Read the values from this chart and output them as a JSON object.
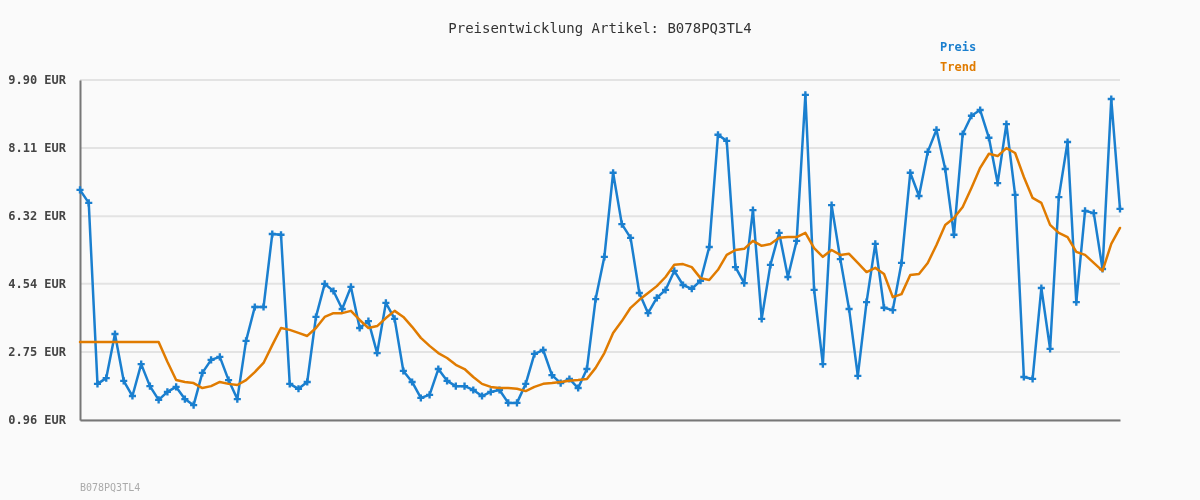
{
  "chart_data": {
    "type": "line",
    "title": "Preisentwicklung Artikel: B078PQ3TL4",
    "categories": [
      null,
      null,
      null,
      null,
      null,
      null,
      null,
      null,
      null,
      null,
      null,
      null,
      null,
      null,
      null,
      null,
      null,
      null,
      null,
      null,
      null,
      null,
      null,
      null,
      null,
      null,
      null,
      null,
      null,
      null,
      null,
      null,
      null,
      null,
      null,
      null,
      null,
      null,
      null,
      null,
      null,
      null,
      null,
      null,
      null,
      null,
      null,
      null,
      null,
      null,
      null,
      null,
      null,
      null,
      null,
      null,
      null,
      null,
      null,
      null,
      null,
      null,
      null,
      null,
      null,
      null,
      null,
      null,
      null,
      null,
      null,
      null,
      null,
      null,
      null,
      null,
      null,
      null,
      null,
      null,
      null,
      null,
      null,
      null,
      null,
      null,
      null,
      null,
      null,
      null,
      null,
      null,
      null,
      null,
      null,
      null,
      null,
      null,
      null,
      null,
      null,
      null,
      null,
      null,
      null,
      null,
      null,
      null,
      null,
      null,
      null,
      null,
      null,
      null,
      null,
      null,
      null,
      null,
      null,
      null
    ],
    "series": [
      {
        "name": "Preis",
        "color": "#1a7fcf",
        "marker": "cross",
        "values": [
          7.01,
          6.67,
          1.91,
          2.06,
          3.22,
          1.99,
          1.59,
          2.43,
          1.85,
          1.49,
          1.7,
          1.83,
          1.51,
          1.35,
          2.2,
          2.54,
          2.62,
          2.01,
          1.51,
          3.04,
          3.93,
          3.93,
          5.85,
          5.83,
          1.91,
          1.78,
          1.96,
          3.67,
          4.54,
          4.35,
          3.88,
          4.46,
          3.38,
          3.56,
          2.72,
          4.04,
          3.62,
          2.25,
          1.96,
          1.54,
          1.62,
          2.3,
          1.99,
          1.85,
          1.85,
          1.75,
          1.59,
          1.7,
          1.75,
          1.41,
          1.41,
          1.91,
          2.7,
          2.8,
          2.14,
          1.93,
          2.04,
          1.8,
          2.3,
          4.14,
          5.25,
          7.46,
          6.11,
          5.75,
          4.3,
          3.77,
          4.17,
          4.38,
          4.88,
          4.51,
          4.41,
          4.62,
          5.51,
          8.46,
          8.3,
          4.98,
          4.56,
          6.48,
          3.62,
          5.04,
          5.88,
          4.72,
          5.67,
          9.51,
          4.38,
          2.43,
          6.61,
          5.19,
          3.88,
          2.12,
          4.06,
          5.59,
          3.91,
          3.85,
          5.09,
          7.46,
          6.85,
          8.01,
          8.59,
          7.56,
          5.83,
          8.48,
          8.96,
          9.11,
          8.38,
          7.19,
          8.74,
          6.88,
          2.09,
          2.04,
          4.43,
          2.83,
          6.82,
          8.27,
          4.06,
          6.46,
          6.4,
          4.93,
          9.4,
          6.51
        ]
      },
      {
        "name": "Trend",
        "color": "#e07b00",
        "marker": "none",
        "values": [
          3.01,
          3.01,
          3.01,
          3.01,
          3.01,
          3.01,
          3.01,
          3.01,
          3.01,
          3.01,
          2.49,
          2.01,
          1.96,
          1.93,
          1.8,
          1.85,
          1.96,
          1.91,
          1.88,
          2.01,
          2.22,
          2.46,
          2.93,
          3.38,
          3.33,
          3.25,
          3.17,
          3.38,
          3.67,
          3.77,
          3.77,
          3.83,
          3.59,
          3.38,
          3.43,
          3.64,
          3.83,
          3.67,
          3.41,
          3.12,
          2.91,
          2.72,
          2.59,
          2.41,
          2.3,
          2.09,
          1.91,
          1.83,
          1.8,
          1.8,
          1.78,
          1.72,
          1.83,
          1.91,
          1.93,
          1.96,
          1.99,
          2.01,
          2.04,
          2.33,
          2.72,
          3.25,
          3.56,
          3.91,
          4.12,
          4.3,
          4.48,
          4.72,
          5.04,
          5.06,
          4.98,
          4.69,
          4.64,
          4.91,
          5.3,
          5.43,
          5.46,
          5.67,
          5.54,
          5.59,
          5.75,
          5.77,
          5.77,
          5.88,
          5.48,
          5.25,
          5.43,
          5.3,
          5.33,
          5.09,
          4.85,
          4.96,
          4.8,
          4.19,
          4.27,
          4.77,
          4.8,
          5.09,
          5.56,
          6.09,
          6.27,
          6.56,
          7.06,
          7.59,
          7.96,
          7.9,
          8.11,
          7.98,
          7.35,
          6.8,
          6.67,
          6.09,
          5.88,
          5.77,
          5.38,
          5.3,
          5.09,
          4.88,
          5.59,
          6.01
        ]
      }
    ],
    "ylim": [
      0.96,
      9.9
    ],
    "yticks": [
      {
        "value": 0.96,
        "label": "0.96 EUR"
      },
      {
        "value": 2.75,
        "label": "2.75 EUR"
      },
      {
        "value": 4.54,
        "label": "4.54 EUR"
      },
      {
        "value": 6.32,
        "label": "6.32 EUR"
      },
      {
        "value": 8.11,
        "label": "8.11 EUR"
      },
      {
        "value": 9.9,
        "label": "9.90 EUR"
      }
    ],
    "grid": "y",
    "legend": "top right",
    "line_style": "solid",
    "annotations": [
      "B078PQ3TL4"
    ]
  }
}
